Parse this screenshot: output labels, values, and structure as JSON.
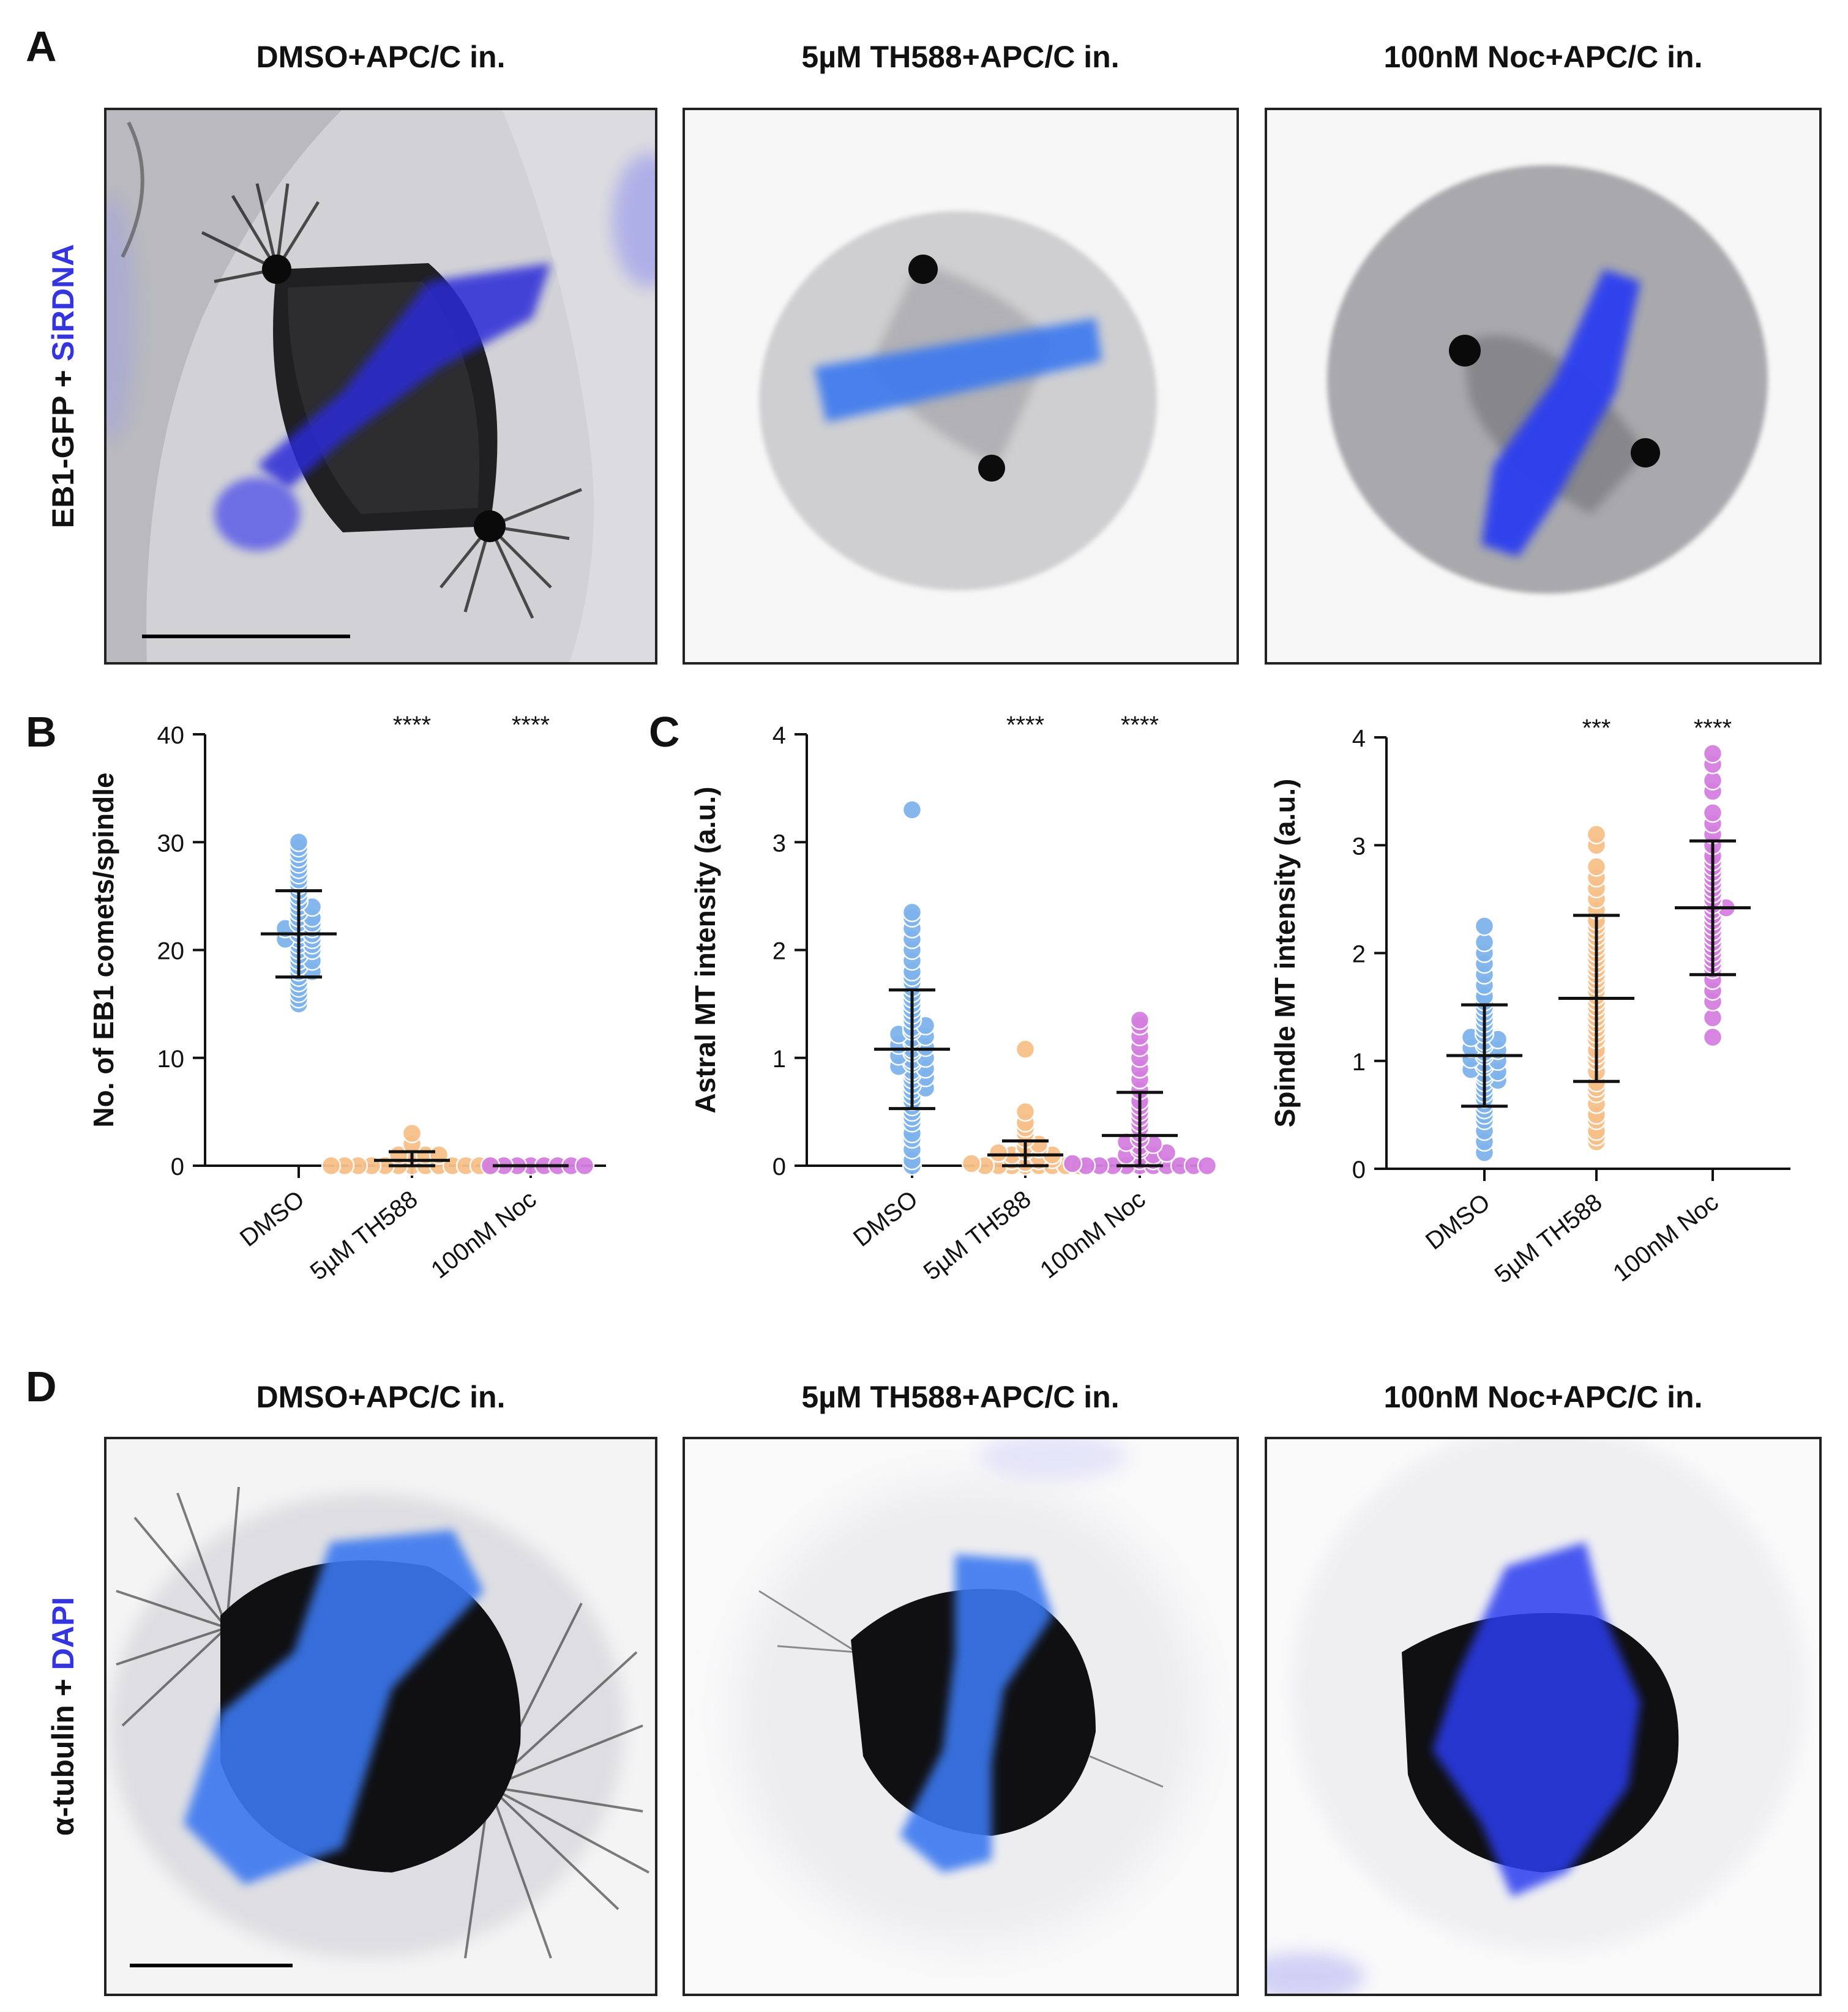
{
  "panels": {
    "A": {
      "letter": "A",
      "titles": [
        "DMSO+APC/C in.",
        "5µM TH588+APC/C in.",
        "100nM Noc+APC/C in."
      ],
      "ylabel_black": "EB1-GFP + ",
      "ylabel_blue": "SiRDNA"
    },
    "B": {
      "letter": "B",
      "chart_data": {
        "type": "scatter",
        "title": "",
        "xlabel": "",
        "ylabel": "No. of EB1 comets/spindle",
        "ylim": [
          0,
          40
        ],
        "yticks": [
          0,
          10,
          20,
          30,
          40
        ],
        "categories": [
          "DMSO",
          "5µM TH588",
          "100nM Noc"
        ],
        "significance": [
          "",
          "****",
          "****"
        ],
        "series": [
          {
            "name": "DMSO",
            "color": "#7fb3ec",
            "mean": 21.5,
            "sd": 4.0,
            "values": [
              15,
              15.5,
              16,
              16.5,
              17,
              17.5,
              18,
              18,
              18.5,
              19,
              19,
              19.5,
              20,
              20,
              20.5,
              20.5,
              21,
              21,
              21,
              21.5,
              21.5,
              22,
              22,
              22,
              22.5,
              22.5,
              23,
              23,
              23.5,
              24,
              24,
              24.5,
              25,
              25.5,
              26,
              26.5,
              27,
              27.5,
              28,
              28.5,
              29,
              29.5,
              30
            ]
          },
          {
            "name": "5µM TH588",
            "color": "#f7c08a",
            "mean": 0.5,
            "sd": 0.8,
            "values": [
              0,
              0,
              0,
              0,
              0,
              0,
              0,
              0,
              0,
              0,
              0,
              0,
              0,
              1,
              1,
              1,
              1,
              2,
              3
            ]
          },
          {
            "name": "100nM Noc",
            "color": "#d47fe0",
            "mean": 0,
            "sd": 0,
            "values": [
              0,
              0,
              0,
              0,
              0,
              0,
              0,
              0
            ]
          }
        ]
      }
    },
    "C": {
      "letter": "C",
      "chart_data": [
        {
          "type": "scatter",
          "title": "",
          "xlabel": "",
          "ylabel": "Astral MT intensity (a.u.)",
          "ylim": [
            0,
            4
          ],
          "yticks": [
            0,
            1,
            2,
            3,
            4
          ],
          "categories": [
            "DMSO",
            "5µM TH588",
            "100nM Noc"
          ],
          "significance": [
            "",
            "****",
            "****"
          ],
          "series": [
            {
              "name": "DMSO",
              "color": "#7fb3ec",
              "mean": 1.08,
              "sd": 0.55,
              "values": [
                0.0,
                0.05,
                0.15,
                0.25,
                0.3,
                0.4,
                0.45,
                0.5,
                0.55,
                0.6,
                0.65,
                0.7,
                0.72,
                0.75,
                0.8,
                0.82,
                0.85,
                0.88,
                0.9,
                0.92,
                0.95,
                0.98,
                1.0,
                1.02,
                1.05,
                1.08,
                1.1,
                1.12,
                1.15,
                1.18,
                1.2,
                1.22,
                1.25,
                1.28,
                1.3,
                1.35,
                1.4,
                1.45,
                1.5,
                1.55,
                1.6,
                1.65,
                1.7,
                1.75,
                1.8,
                1.9,
                2.0,
                2.1,
                2.2,
                2.3,
                2.35,
                3.3
              ]
            },
            {
              "name": "5µM TH588",
              "color": "#f7c08a",
              "mean": 0.1,
              "sd": 0.13,
              "values": [
                0,
                0,
                0,
                0,
                0,
                0,
                0,
                0,
                0.02,
                0.03,
                0.05,
                0.05,
                0.06,
                0.08,
                0.08,
                0.1,
                0.1,
                0.12,
                0.14,
                0.16,
                0.18,
                0.2,
                0.25,
                0.3,
                0.35,
                0.4,
                0.5,
                1.08
              ]
            },
            {
              "name": "100nM Noc",
              "color": "#d47fe0",
              "mean": 0.28,
              "sd": 0.4,
              "values": [
                0,
                0,
                0,
                0,
                0,
                0,
                0,
                0,
                0,
                0,
                0.02,
                0.05,
                0.05,
                0.08,
                0.1,
                0.1,
                0.12,
                0.15,
                0.18,
                0.2,
                0.22,
                0.25,
                0.3,
                0.35,
                0.4,
                0.45,
                0.5,
                0.55,
                0.6,
                0.7,
                0.8,
                0.9,
                1.0,
                1.1,
                1.2,
                1.3,
                1.35
              ]
            }
          ]
        },
        {
          "type": "scatter",
          "title": "",
          "xlabel": "",
          "ylabel": "Spindle MT intensity (a.u.)",
          "ylim": [
            0,
            4
          ],
          "yticks": [
            0,
            1,
            2,
            3,
            4
          ],
          "categories": [
            "DMSO",
            "5µM TH588",
            "100nM Noc"
          ],
          "significance": [
            "",
            "***",
            "****"
          ],
          "series": [
            {
              "name": "DMSO",
              "color": "#7fb3ec",
              "mean": 1.05,
              "sd": 0.47,
              "values": [
                0.15,
                0.25,
                0.35,
                0.45,
                0.5,
                0.55,
                0.6,
                0.65,
                0.7,
                0.75,
                0.8,
                0.82,
                0.85,
                0.88,
                0.9,
                0.92,
                0.95,
                0.98,
                1.0,
                1.02,
                1.05,
                1.08,
                1.1,
                1.12,
                1.15,
                1.18,
                1.2,
                1.22,
                1.25,
                1.3,
                1.35,
                1.4,
                1.45,
                1.5,
                1.55,
                1.6,
                1.7,
                1.8,
                1.9,
                2.0,
                2.1,
                2.25
              ]
            },
            {
              "name": "5µM TH588",
              "color": "#f7c08a",
              "mean": 1.58,
              "sd": 0.77,
              "values": [
                0.25,
                0.3,
                0.35,
                0.45,
                0.5,
                0.6,
                0.7,
                0.75,
                0.8,
                0.9,
                1.0,
                1.05,
                1.1,
                1.2,
                1.25,
                1.3,
                1.35,
                1.4,
                1.45,
                1.5,
                1.55,
                1.6,
                1.65,
                1.7,
                1.75,
                1.8,
                1.85,
                1.9,
                1.95,
                2.0,
                2.05,
                2.1,
                2.15,
                2.2,
                2.25,
                2.3,
                2.4,
                2.5,
                2.6,
                2.7,
                2.8,
                3.0,
                3.1
              ]
            },
            {
              "name": "100nM Noc",
              "color": "#d47fe0",
              "mean": 2.42,
              "sd": 0.62,
              "values": [
                1.22,
                1.4,
                1.55,
                1.65,
                1.75,
                1.85,
                1.9,
                1.95,
                2.0,
                2.05,
                2.1,
                2.15,
                2.2,
                2.25,
                2.3,
                2.35,
                2.4,
                2.42,
                2.45,
                2.5,
                2.55,
                2.6,
                2.65,
                2.7,
                2.75,
                2.8,
                2.85,
                2.9,
                3.0,
                3.1,
                3.2,
                3.3,
                3.5,
                3.6,
                3.75,
                3.85
              ]
            }
          ]
        }
      ]
    },
    "D": {
      "letter": "D",
      "titles": [
        "DMSO+APC/C in.",
        "5µM TH588+APC/C in.",
        "100nM Noc+APC/C in."
      ],
      "ylabel_black": "α-tubulin + ",
      "ylabel_blue": "DAPI"
    }
  },
  "colors": {
    "blue_label": "#3535e0",
    "dna_blue": "#2c3cf0",
    "dna_light_blue": "#3a78f0",
    "dmso_point": "#7fb3ec",
    "th588_point": "#f7c08a",
    "noc_point": "#d47fe0"
  }
}
